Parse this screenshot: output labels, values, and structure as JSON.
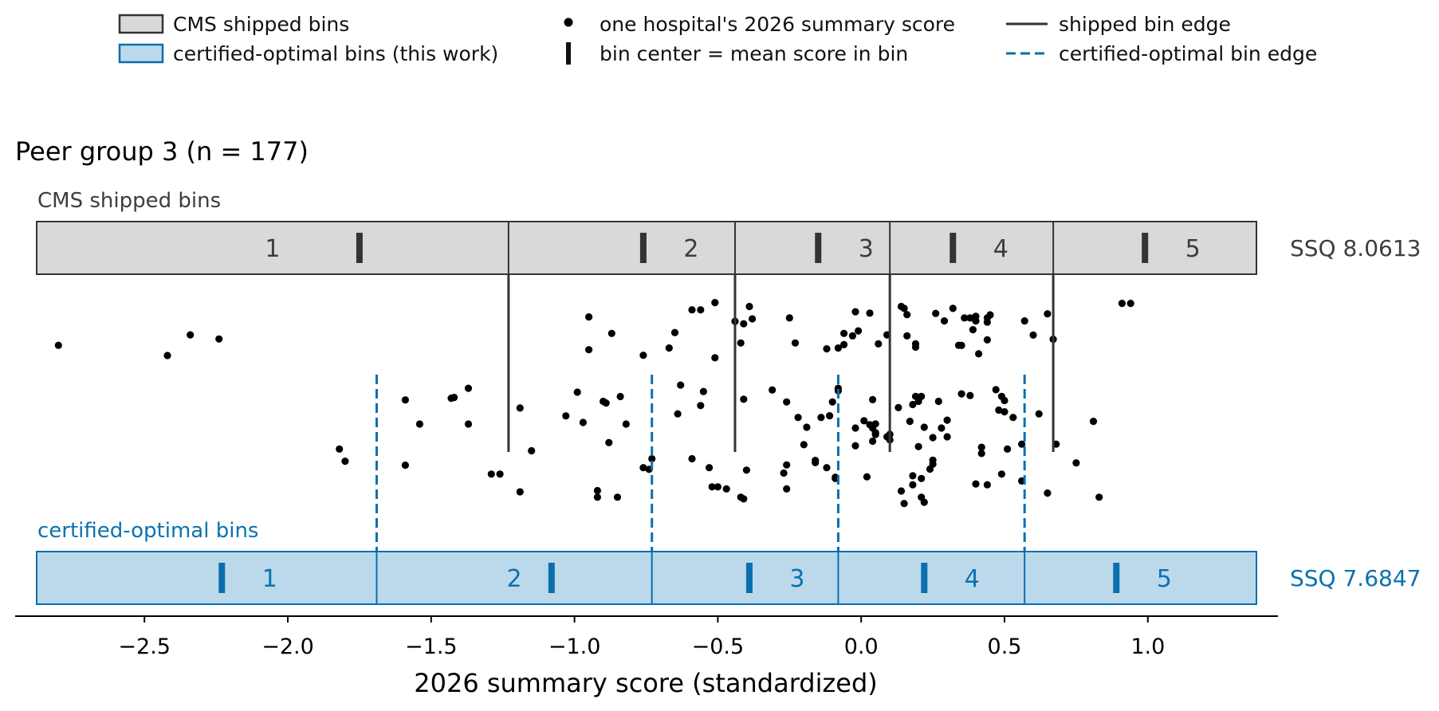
{
  "legend": {
    "items": [
      {
        "kind": "shipped-box",
        "label": "CMS shipped bins"
      },
      {
        "kind": "optimal-box",
        "label": "certified-optimal bins (this work)"
      },
      {
        "kind": "dot",
        "label": "one hospital's 2026 summary score"
      },
      {
        "kind": "center-bar",
        "label": "bin center = mean score in bin"
      },
      {
        "kind": "solid-line",
        "label": "shipped bin edge"
      },
      {
        "kind": "dashed-line",
        "label": "certified-optimal bin edge"
      }
    ]
  },
  "colors": {
    "shipped_fill": "#d9d9d9",
    "shipped_edge": "#333333",
    "shipped_text": "#3d3d3d",
    "optimal_fill": "#bcd9ec",
    "optimal_edge": "#0a6fad",
    "optimal_text": "#0a72b0",
    "dot": "#000000"
  },
  "chart_data": {
    "type": "scatter",
    "title": "Peer group 3  (n = 177)",
    "xlabel": "2026 summary score (standardized)",
    "xlim": [
      -2.88,
      1.47
    ],
    "x_ticks": [
      -2.5,
      -2.0,
      -1.5,
      -1.0,
      -0.5,
      0.0,
      0.5,
      1.0
    ],
    "x_tick_labels": [
      "−2.5",
      "−2.0",
      "−1.5",
      "−1.0",
      "−0.5",
      "0.0",
      "0.5",
      "1.0"
    ],
    "shipped": {
      "label": "CMS shipped bins",
      "edges": [
        -2.85,
        -1.23,
        -0.44,
        0.1,
        0.67,
        1.4
      ],
      "bins": [
        "1",
        "2",
        "3",
        "4",
        "5"
      ],
      "centers": [
        -1.75,
        -0.76,
        -0.15,
        0.32,
        0.99
      ],
      "ssq_label": "SSQ 8.0613"
    },
    "optimal": {
      "label": "certified-optimal bins",
      "edges": [
        -2.85,
        -1.69,
        -0.73,
        -0.08,
        0.57,
        1.4
      ],
      "bins": [
        "1",
        "2",
        "3",
        "4",
        "5"
      ],
      "centers": [
        -2.23,
        -1.08,
        -0.39,
        0.22,
        0.89
      ],
      "ssq_label": "SSQ 7.6847"
    },
    "points": [
      [
        -2.8,
        0.829
      ],
      [
        -2.42,
        0.78
      ],
      [
        -2.34,
        0.879
      ],
      [
        -2.24,
        0.859
      ],
      [
        -1.82,
        0.331
      ],
      [
        -1.8,
        0.273
      ],
      [
        -1.59,
        0.567
      ],
      [
        -1.59,
        0.254
      ],
      [
        -1.54,
        0.451
      ],
      [
        -1.43,
        0.575
      ],
      [
        -1.42,
        0.579
      ],
      [
        -1.37,
        0.451
      ],
      [
        -1.37,
        0.623
      ],
      [
        -1.29,
        0.211
      ],
      [
        -1.26,
        0.211
      ],
      [
        -1.19,
        0.126
      ],
      [
        -1.19,
        0.528
      ],
      [
        -1.15,
        0.323
      ],
      [
        -1.03,
        0.49
      ],
      [
        -0.99,
        0.604
      ],
      [
        -0.97,
        0.459
      ],
      [
        -0.95,
        0.965
      ],
      [
        -0.95,
        0.808
      ],
      [
        -0.92,
        0.132
      ],
      [
        -0.92,
        0.1
      ],
      [
        -0.9,
        0.56
      ],
      [
        -0.89,
        0.552
      ],
      [
        -0.88,
        0.362
      ],
      [
        -0.87,
        0.886
      ],
      [
        -0.85,
        0.1
      ],
      [
        -0.84,
        0.583
      ],
      [
        -0.82,
        0.451
      ],
      [
        -0.76,
        0.242
      ],
      [
        -0.76,
        0.781
      ],
      [
        -0.74,
        0.234
      ],
      [
        -0.73,
        0.285
      ],
      [
        -0.67,
        0.816
      ],
      [
        -0.65,
        0.89
      ],
      [
        -0.64,
        0.5
      ],
      [
        -0.63,
        0.638
      ],
      [
        -0.59,
        0.285
      ],
      [
        -0.59,
        0.999
      ],
      [
        -0.56,
        0.999
      ],
      [
        -0.56,
        0.54
      ],
      [
        -0.55,
        0.607
      ],
      [
        -0.53,
        0.242
      ],
      [
        -0.52,
        0.15
      ],
      [
        -0.5,
        0.15
      ],
      [
        -0.51,
        0.769
      ],
      [
        -0.51,
        1.034
      ],
      [
        -0.47,
        0.14
      ],
      [
        -0.44,
        0.944
      ],
      [
        -0.42,
        0.84
      ],
      [
        -0.42,
        0.1
      ],
      [
        -0.41,
        0.092
      ],
      [
        -0.41,
        0.57
      ],
      [
        -0.4,
        0.23
      ],
      [
        -0.41,
        0.932
      ],
      [
        -0.39,
        1.015
      ],
      [
        -0.38,
        0.956
      ],
      [
        -0.31,
        0.615
      ],
      [
        -0.26,
        0.255
      ],
      [
        -0.26,
        0.14
      ],
      [
        -0.27,
        0.216
      ],
      [
        -0.26,
        0.557
      ],
      [
        -0.25,
        0.96
      ],
      [
        -0.22,
        0.483
      ],
      [
        -0.23,
        0.84
      ],
      [
        -0.2,
        0.352
      ],
      [
        -0.19,
        0.436
      ],
      [
        -0.16,
        0.266
      ],
      [
        -0.16,
        0.277
      ],
      [
        -0.14,
        0.483
      ],
      [
        -0.12,
        0.242
      ],
      [
        -0.12,
        0.812
      ],
      [
        -0.11,
        0.491
      ],
      [
        -0.1,
        0.557
      ],
      [
        -0.09,
        0.196
      ],
      [
        -0.09,
        0.19
      ],
      [
        -0.08,
        0.611
      ],
      [
        -0.08,
        0.623
      ],
      [
        -0.08,
        0.816
      ],
      [
        -0.06,
        0.832
      ],
      [
        -0.06,
        0.886
      ],
      [
        -0.03,
        0.874
      ],
      [
        -0.02,
        0.432
      ],
      [
        -0.02,
        0.347
      ],
      [
        -0.02,
        0.99
      ],
      [
        -0.01,
        0.898
      ],
      [
        0.01,
        0.467
      ],
      [
        0.02,
        0.198
      ],
      [
        0.03,
        0.983
      ],
      [
        0.03,
        0.448
      ],
      [
        0.04,
        0.432
      ],
      [
        0.05,
        0.452
      ],
      [
        0.04,
        0.568
      ],
      [
        0.04,
        0.369
      ],
      [
        0.05,
        0.41
      ],
      [
        0.05,
        0.401
      ],
      [
        0.06,
        0.836
      ],
      [
        0.09,
        0.879
      ],
      [
        0.09,
        0.39
      ],
      [
        0.1,
        0.402
      ],
      [
        0.1,
        0.375
      ],
      [
        0.13,
        0.53
      ],
      [
        0.14,
        0.13
      ],
      [
        0.15,
        0.07
      ],
      [
        0.16,
        0.874
      ],
      [
        0.14,
        1.015
      ],
      [
        0.15,
        1.006
      ],
      [
        0.16,
        0.976
      ],
      [
        0.17,
        0.464
      ],
      [
        0.18,
        0.16
      ],
      [
        0.18,
        0.203
      ],
      [
        0.18,
        0.545
      ],
      [
        0.19,
        0.584
      ],
      [
        0.19,
        0.836
      ],
      [
        0.19,
        0.82
      ],
      [
        0.2,
        0.343
      ],
      [
        0.2,
        0.56
      ],
      [
        0.21,
        0.1
      ],
      [
        0.21,
        0.19
      ],
      [
        0.21,
        0.584
      ],
      [
        0.22,
        0.076
      ],
      [
        0.22,
        0.436
      ],
      [
        0.24,
        0.235
      ],
      [
        0.25,
        0.259
      ],
      [
        0.25,
        0.278
      ],
      [
        0.25,
        0.386
      ],
      [
        0.26,
        0.982
      ],
      [
        0.27,
        0.56
      ],
      [
        0.28,
        0.432
      ],
      [
        0.29,
        0.946
      ],
      [
        0.32,
        1.006
      ],
      [
        0.3,
        0.47
      ],
      [
        0.3,
        0.39
      ],
      [
        0.34,
        0.829
      ],
      [
        0.35,
        0.596
      ],
      [
        0.35,
        0.828
      ],
      [
        0.36,
        0.96
      ],
      [
        0.38,
        0.588
      ],
      [
        0.38,
        0.96
      ],
      [
        0.39,
        0.904
      ],
      [
        0.4,
        0.946
      ],
      [
        0.4,
        0.164
      ],
      [
        0.4,
        0.968
      ],
      [
        0.41,
        0.788
      ],
      [
        0.42,
        0.34
      ],
      [
        0.42,
        0.31
      ],
      [
        0.44,
        0.16
      ],
      [
        0.44,
        0.94
      ],
      [
        0.44,
        0.96
      ],
      [
        0.44,
        0.855
      ],
      [
        0.45,
        0.975
      ],
      [
        0.47,
        0.616
      ],
      [
        0.48,
        0.518
      ],
      [
        0.49,
        0.211
      ],
      [
        0.49,
        0.584
      ],
      [
        0.5,
        0.564
      ],
      [
        0.5,
        0.51
      ],
      [
        0.51,
        0.331
      ],
      [
        0.53,
        0.483
      ],
      [
        0.56,
        0.178
      ],
      [
        0.56,
        0.355
      ],
      [
        0.57,
        0.946
      ],
      [
        0.6,
        0.878
      ],
      [
        0.62,
        0.5
      ],
      [
        0.65,
        0.12
      ],
      [
        0.65,
        0.98
      ],
      [
        0.67,
        0.858
      ],
      [
        0.68,
        0.355
      ],
      [
        0.75,
        0.265
      ],
      [
        0.81,
        0.464
      ],
      [
        0.83,
        0.1
      ],
      [
        0.91,
        1.03
      ],
      [
        0.94,
        1.03
      ]
    ]
  }
}
